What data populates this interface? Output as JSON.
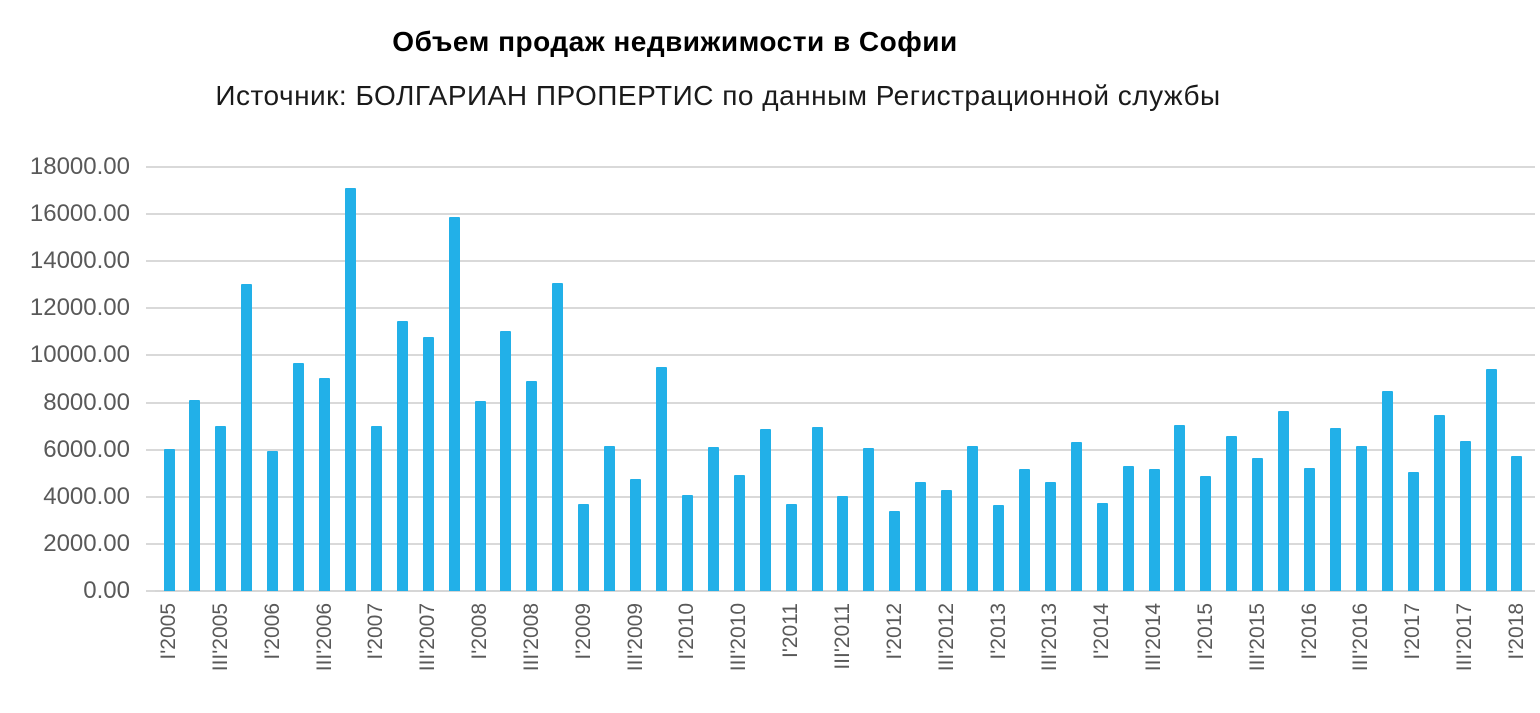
{
  "title": "Объем продаж недвижимости в Софии",
  "subtitle": "Источник: БОЛГАРИАН ПРОПЕРТИС по данным Регистрационной службы",
  "colors": {
    "bar": "#22B0E8",
    "gridline": "#D9D9D9",
    "axis_line": "#D6D6D6",
    "axis_text": "#595959",
    "title_text": "#000000"
  },
  "chart_data": {
    "type": "bar",
    "title": "Объем продаж недвижимости в Софии",
    "subtitle": "Источник: БОЛГАРИАН ПРОПЕРТИС по данным Регистрационной службы",
    "xlabel": "",
    "ylabel": "",
    "ylim": [
      0,
      18000
    ],
    "y_tick_step": 2000,
    "y_tick_labels": [
      "0.00",
      "2000.00",
      "4000.00",
      "6000.00",
      "8000.00",
      "10000.00",
      "12000.00",
      "14000.00",
      "16000.00",
      "18000.00"
    ],
    "grid": "horizontal",
    "legend": "none",
    "x_tick_labels_shown": [
      "I'2005",
      "III'2005",
      "I'2006",
      "III'2006",
      "I'2007",
      "III'2007",
      "I'2008",
      "III'2008",
      "I'2009",
      "III'2009",
      "I'2010",
      "III'2010",
      "I'2011",
      "III'2011",
      "I'2012",
      "III'2012",
      "I'2013",
      "III'2013",
      "I'2014",
      "III'2014",
      "I'2015",
      "III'2015",
      "I'2016",
      "III'2016",
      "I'2017",
      "III'2017",
      "I'2018"
    ],
    "x_label_rotation_deg": -90,
    "categories": [
      "I'2005",
      "II'2005",
      "III'2005",
      "IV'2005",
      "I'2006",
      "II'2006",
      "III'2006",
      "IV'2006",
      "I'2007",
      "II'2007",
      "III'2007",
      "IV'2007",
      "I'2008",
      "II'2008",
      "III'2008",
      "IV'2008",
      "I'2009",
      "II'2009",
      "III'2009",
      "IV'2009",
      "I'2010",
      "II'2010",
      "III'2010",
      "IV'2010",
      "I'2011",
      "II'2011",
      "III'2011",
      "IV'2011",
      "I'2012",
      "II'2012",
      "III'2012",
      "IV'2012",
      "I'2013",
      "II'2013",
      "III'2013",
      "IV'2013",
      "I'2014",
      "II'2014",
      "III'2014",
      "IV'2014",
      "I'2015",
      "II'2015",
      "III'2015",
      "IV'2015",
      "I'2016",
      "II'2016",
      "III'2016",
      "IV'2016",
      "I'2017",
      "II'2017",
      "III'2017",
      "IV'2017",
      "I'2018"
    ],
    "values": [
      6000,
      8070,
      6980,
      13000,
      5920,
      9630,
      9000,
      17050,
      6960,
      11400,
      10750,
      15840,
      8020,
      10980,
      8860,
      13030,
      3650,
      6130,
      4730,
      9470,
      4030,
      6050,
      4870,
      6840,
      3650,
      6930,
      4010,
      6040,
      3350,
      4600,
      4230,
      6130,
      3620,
      5150,
      4600,
      6280,
      3700,
      5250,
      5150,
      7000,
      4830,
      6520,
      5620,
      7600,
      5200,
      6860,
      6110,
      8460,
      5030,
      7430,
      6340,
      9400,
      5700
    ]
  }
}
